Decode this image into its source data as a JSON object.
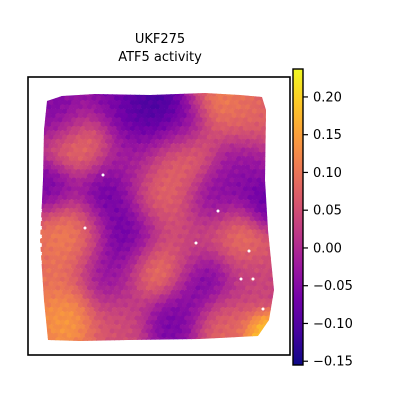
{
  "chart_data": {
    "type": "heatmap",
    "title": "UKF275",
    "subtitle": "ATF5 activity",
    "xlabel": "",
    "ylabel": "",
    "colorbar": {
      "colormap": "plasma",
      "min": -0.155,
      "max": 0.237,
      "ticks": [
        0.2,
        0.15,
        0.1,
        0.05,
        0.0,
        -0.05,
        -0.1,
        -0.15
      ],
      "tick_labels": [
        "0.20",
        "0.15",
        "0.10",
        "0.05",
        "0.00",
        "−0.05",
        "−0.10",
        "−0.15"
      ],
      "colors": [
        "#0d0887",
        "#46039f",
        "#7201a8",
        "#9c179e",
        "#bd3786",
        "#d8576b",
        "#ed7953",
        "#fb9f3a",
        "#fdca26",
        "#f0f921"
      ]
    },
    "spot_grid": {
      "columns": 52,
      "rows": 58
    },
    "hotspots": [
      {
        "x": 0.1,
        "y": 0.1,
        "v": -0.08,
        "r": 0.08
      },
      {
        "x": 0.32,
        "y": 0.05,
        "v": -0.06,
        "r": 0.07
      },
      {
        "x": 0.46,
        "y": 0.08,
        "v": -0.14,
        "r": 0.1
      },
      {
        "x": 0.6,
        "y": 0.12,
        "v": -0.11,
        "r": 0.08
      },
      {
        "x": 0.75,
        "y": 0.04,
        "v": 0.13,
        "r": 0.08
      },
      {
        "x": 0.9,
        "y": 0.12,
        "v": 0.09,
        "r": 0.08
      },
      {
        "x": 0.18,
        "y": 0.22,
        "v": 0.14,
        "r": 0.09
      },
      {
        "x": 0.4,
        "y": 0.25,
        "v": -0.03,
        "r": 0.1
      },
      {
        "x": 0.62,
        "y": 0.24,
        "v": 0.12,
        "r": 0.09
      },
      {
        "x": 0.86,
        "y": 0.28,
        "v": -0.05,
        "r": 0.08
      },
      {
        "x": 0.05,
        "y": 0.38,
        "v": -0.09,
        "r": 0.07
      },
      {
        "x": 0.28,
        "y": 0.4,
        "v": -0.11,
        "r": 0.09
      },
      {
        "x": 0.52,
        "y": 0.4,
        "v": 0.11,
        "r": 0.1
      },
      {
        "x": 0.74,
        "y": 0.42,
        "v": -0.07,
        "r": 0.09
      },
      {
        "x": 0.95,
        "y": 0.45,
        "v": -0.1,
        "r": 0.06
      },
      {
        "x": 0.14,
        "y": 0.55,
        "v": 0.13,
        "r": 0.09
      },
      {
        "x": 0.38,
        "y": 0.58,
        "v": -0.1,
        "r": 0.09
      },
      {
        "x": 0.62,
        "y": 0.6,
        "v": 0.05,
        "r": 0.09
      },
      {
        "x": 0.84,
        "y": 0.58,
        "v": 0.12,
        "r": 0.08
      },
      {
        "x": 0.06,
        "y": 0.72,
        "v": 0.1,
        "r": 0.08
      },
      {
        "x": 0.3,
        "y": 0.75,
        "v": -0.04,
        "r": 0.09
      },
      {
        "x": 0.5,
        "y": 0.72,
        "v": 0.15,
        "r": 0.08
      },
      {
        "x": 0.7,
        "y": 0.76,
        "v": -0.09,
        "r": 0.09
      },
      {
        "x": 0.9,
        "y": 0.74,
        "v": 0.04,
        "r": 0.08
      },
      {
        "x": 0.12,
        "y": 0.9,
        "v": 0.16,
        "r": 0.08
      },
      {
        "x": 0.34,
        "y": 0.92,
        "v": 0.06,
        "r": 0.08
      },
      {
        "x": 0.56,
        "y": 0.9,
        "v": -0.08,
        "r": 0.08
      },
      {
        "x": 0.78,
        "y": 0.92,
        "v": 0.1,
        "r": 0.08
      },
      {
        "x": 0.96,
        "y": 0.97,
        "v": 0.22,
        "r": 0.05
      }
    ],
    "background_value": 0.02
  }
}
